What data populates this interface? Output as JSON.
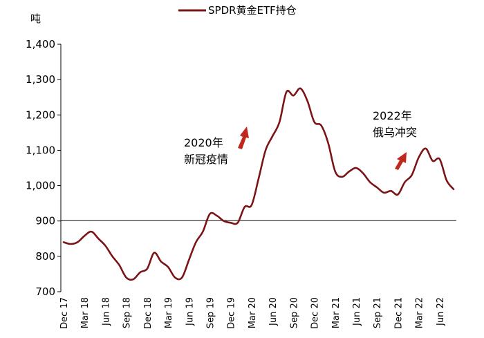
{
  "chart_data": {
    "type": "line",
    "unit_label": "吨",
    "legend_position": "top",
    "grid": false,
    "ylim": [
      700,
      1400
    ],
    "yticks": [
      700,
      800,
      900,
      1000,
      1100,
      1200,
      1300,
      1400
    ],
    "ytick_labels": [
      "700",
      "800",
      "900",
      "1,000",
      "1,100",
      "1,200",
      "1,300",
      "1,400"
    ],
    "xtick_labels": [
      "Dec 17",
      "Mar 18",
      "Jun 18",
      "Sep 18",
      "Dec 18",
      "Mar 19",
      "Jun 19",
      "Sep 19",
      "Dec 19",
      "Mar 20",
      "Jun 20",
      "Sep 20",
      "Dec 20",
      "Mar 21",
      "Jun 21",
      "Sep 21",
      "Dec 21",
      "Mar 22",
      "Jun 22"
    ],
    "series": [
      {
        "name": "SPDR黄金ETF持仓",
        "color": "#7b1416",
        "x": [
          "Dec 17",
          "Jan 18",
          "Feb 18",
          "Mar 18",
          "Apr 18",
          "May 18",
          "Jun 18",
          "Jul 18",
          "Aug 18",
          "Sep 18",
          "Oct 18",
          "Nov 18",
          "Dec 18",
          "Jan 19",
          "Feb 19",
          "Mar 19",
          "Apr 19",
          "May 19",
          "Jun 19",
          "Jul 19",
          "Aug 19",
          "Sep 19",
          "Oct 19",
          "Nov 19",
          "Dec 19",
          "Jan 20",
          "Feb 20",
          "Mar 20",
          "Apr 20",
          "May 20",
          "Jun 20",
          "Jul 20",
          "Aug 20",
          "Sep 20",
          "Oct 20",
          "Nov 20",
          "Dec 20",
          "Jan 21",
          "Feb 21",
          "Mar 21",
          "Apr 21",
          "May 21",
          "Jun 21",
          "Jul 21",
          "Aug 21",
          "Sep 21",
          "Oct 21",
          "Nov 21",
          "Dec 21",
          "Jan 22",
          "Feb 22",
          "Mar 22",
          "Apr 22",
          "May 22",
          "Jun 22",
          "Jul 22",
          "Aug 22"
        ],
        "values": [
          840,
          835,
          840,
          858,
          870,
          850,
          830,
          800,
          775,
          740,
          735,
          755,
          765,
          810,
          785,
          770,
          740,
          740,
          790,
          840,
          870,
          920,
          915,
          900,
          895,
          895,
          940,
          945,
          1020,
          1100,
          1140,
          1180,
          1265,
          1255,
          1275,
          1240,
          1180,
          1170,
          1120,
          1040,
          1025,
          1040,
          1050,
          1035,
          1010,
          995,
          980,
          985,
          975,
          1010,
          1030,
          1080,
          1105,
          1070,
          1075,
          1015,
          990
        ]
      }
    ],
    "annotations": [
      {
        "line1": "2020年",
        "line2": "新冠疫情"
      },
      {
        "line1": "2022年",
        "line2": "俄乌冲突"
      }
    ]
  }
}
